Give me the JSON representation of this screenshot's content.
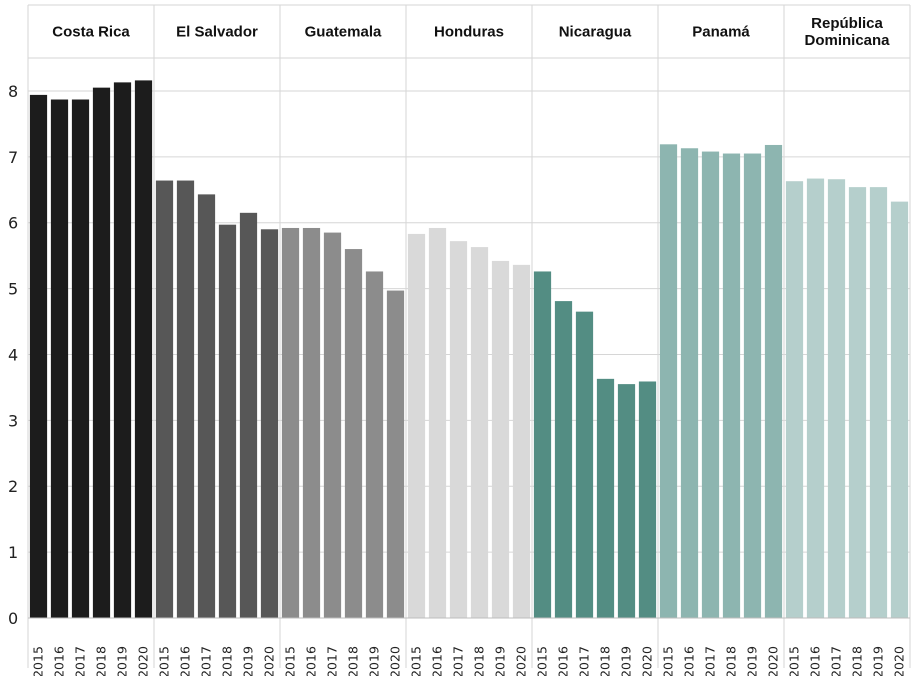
{
  "chart_data": {
    "type": "bar",
    "ylim": [
      0,
      8.5
    ],
    "y_ticks": [
      "0",
      "1",
      "2",
      "3",
      "4",
      "5",
      "6",
      "7",
      "8"
    ],
    "grid": true,
    "years": [
      "2015",
      "2016",
      "2017",
      "2018",
      "2019",
      "2020"
    ],
    "panels": [
      {
        "name": "Costa Rica",
        "name_lines": [
          "Costa Rica"
        ],
        "color": "#1c1c1c",
        "values": [
          7.94,
          7.87,
          7.87,
          8.05,
          8.13,
          8.16
        ]
      },
      {
        "name": "El Salvador",
        "name_lines": [
          "El Salvador"
        ],
        "color": "#575757",
        "values": [
          6.64,
          6.64,
          6.43,
          5.97,
          6.15,
          5.9
        ]
      },
      {
        "name": "Guatemala",
        "name_lines": [
          "Guatemala"
        ],
        "color": "#8c8c8c",
        "values": [
          5.92,
          5.92,
          5.85,
          5.6,
          5.26,
          4.97
        ]
      },
      {
        "name": "Honduras",
        "name_lines": [
          "Honduras"
        ],
        "color": "#d9d9d9",
        "values": [
          5.83,
          5.92,
          5.72,
          5.63,
          5.42,
          5.36
        ]
      },
      {
        "name": "Nicaragua",
        "name_lines": [
          "Nicaragua"
        ],
        "color": "#538d83",
        "values": [
          5.26,
          4.81,
          4.65,
          3.63,
          3.55,
          3.59
        ]
      },
      {
        "name": "Panamá",
        "name_lines": [
          "Panamá"
        ],
        "color": "#8db5b0",
        "values": [
          7.19,
          7.13,
          7.08,
          7.05,
          7.05,
          7.18
        ]
      },
      {
        "name": "República Dominicana",
        "name_lines": [
          "República",
          "Dominicana"
        ],
        "color": "#b5cfcc",
        "values": [
          6.63,
          6.67,
          6.66,
          6.54,
          6.54,
          6.32
        ]
      }
    ]
  }
}
